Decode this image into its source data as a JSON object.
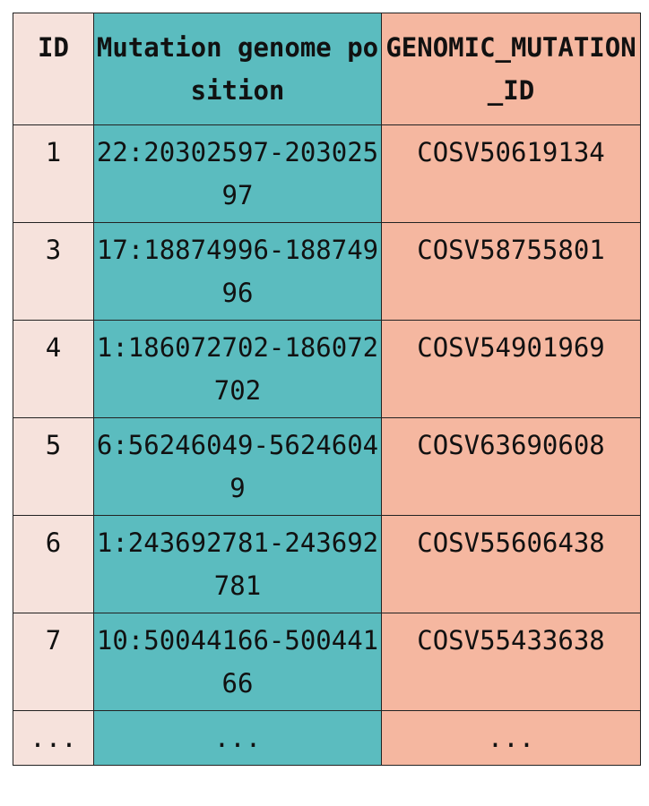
{
  "table": {
    "headers": {
      "id": "ID",
      "position": "Mutation genome position",
      "genomic_id": "GENOMIC_MUTATION_ID"
    },
    "rows": [
      {
        "id": "1",
        "position": "22:20302597-20302597",
        "genomic_id": "COSV50619134"
      },
      {
        "id": "3",
        "position": "17:18874996-18874996",
        "genomic_id": "COSV58755801"
      },
      {
        "id": "4",
        "position": "1:186072702-186072702",
        "genomic_id": "COSV54901969"
      },
      {
        "id": "5",
        "position": "6:56246049-56246049",
        "genomic_id": "COSV63690608"
      },
      {
        "id": "6",
        "position": "1:243692781-243692781",
        "genomic_id": "COSV55606438"
      },
      {
        "id": "7",
        "position": "10:50044166-50044166",
        "genomic_id": "COSV55433638"
      },
      {
        "id": "...",
        "position": "...",
        "genomic_id": "..."
      }
    ]
  },
  "colors": {
    "id_column": "#f6e2dc",
    "position_column": "#5bbcbf",
    "genomic_id_column": "#f5b7a0"
  }
}
